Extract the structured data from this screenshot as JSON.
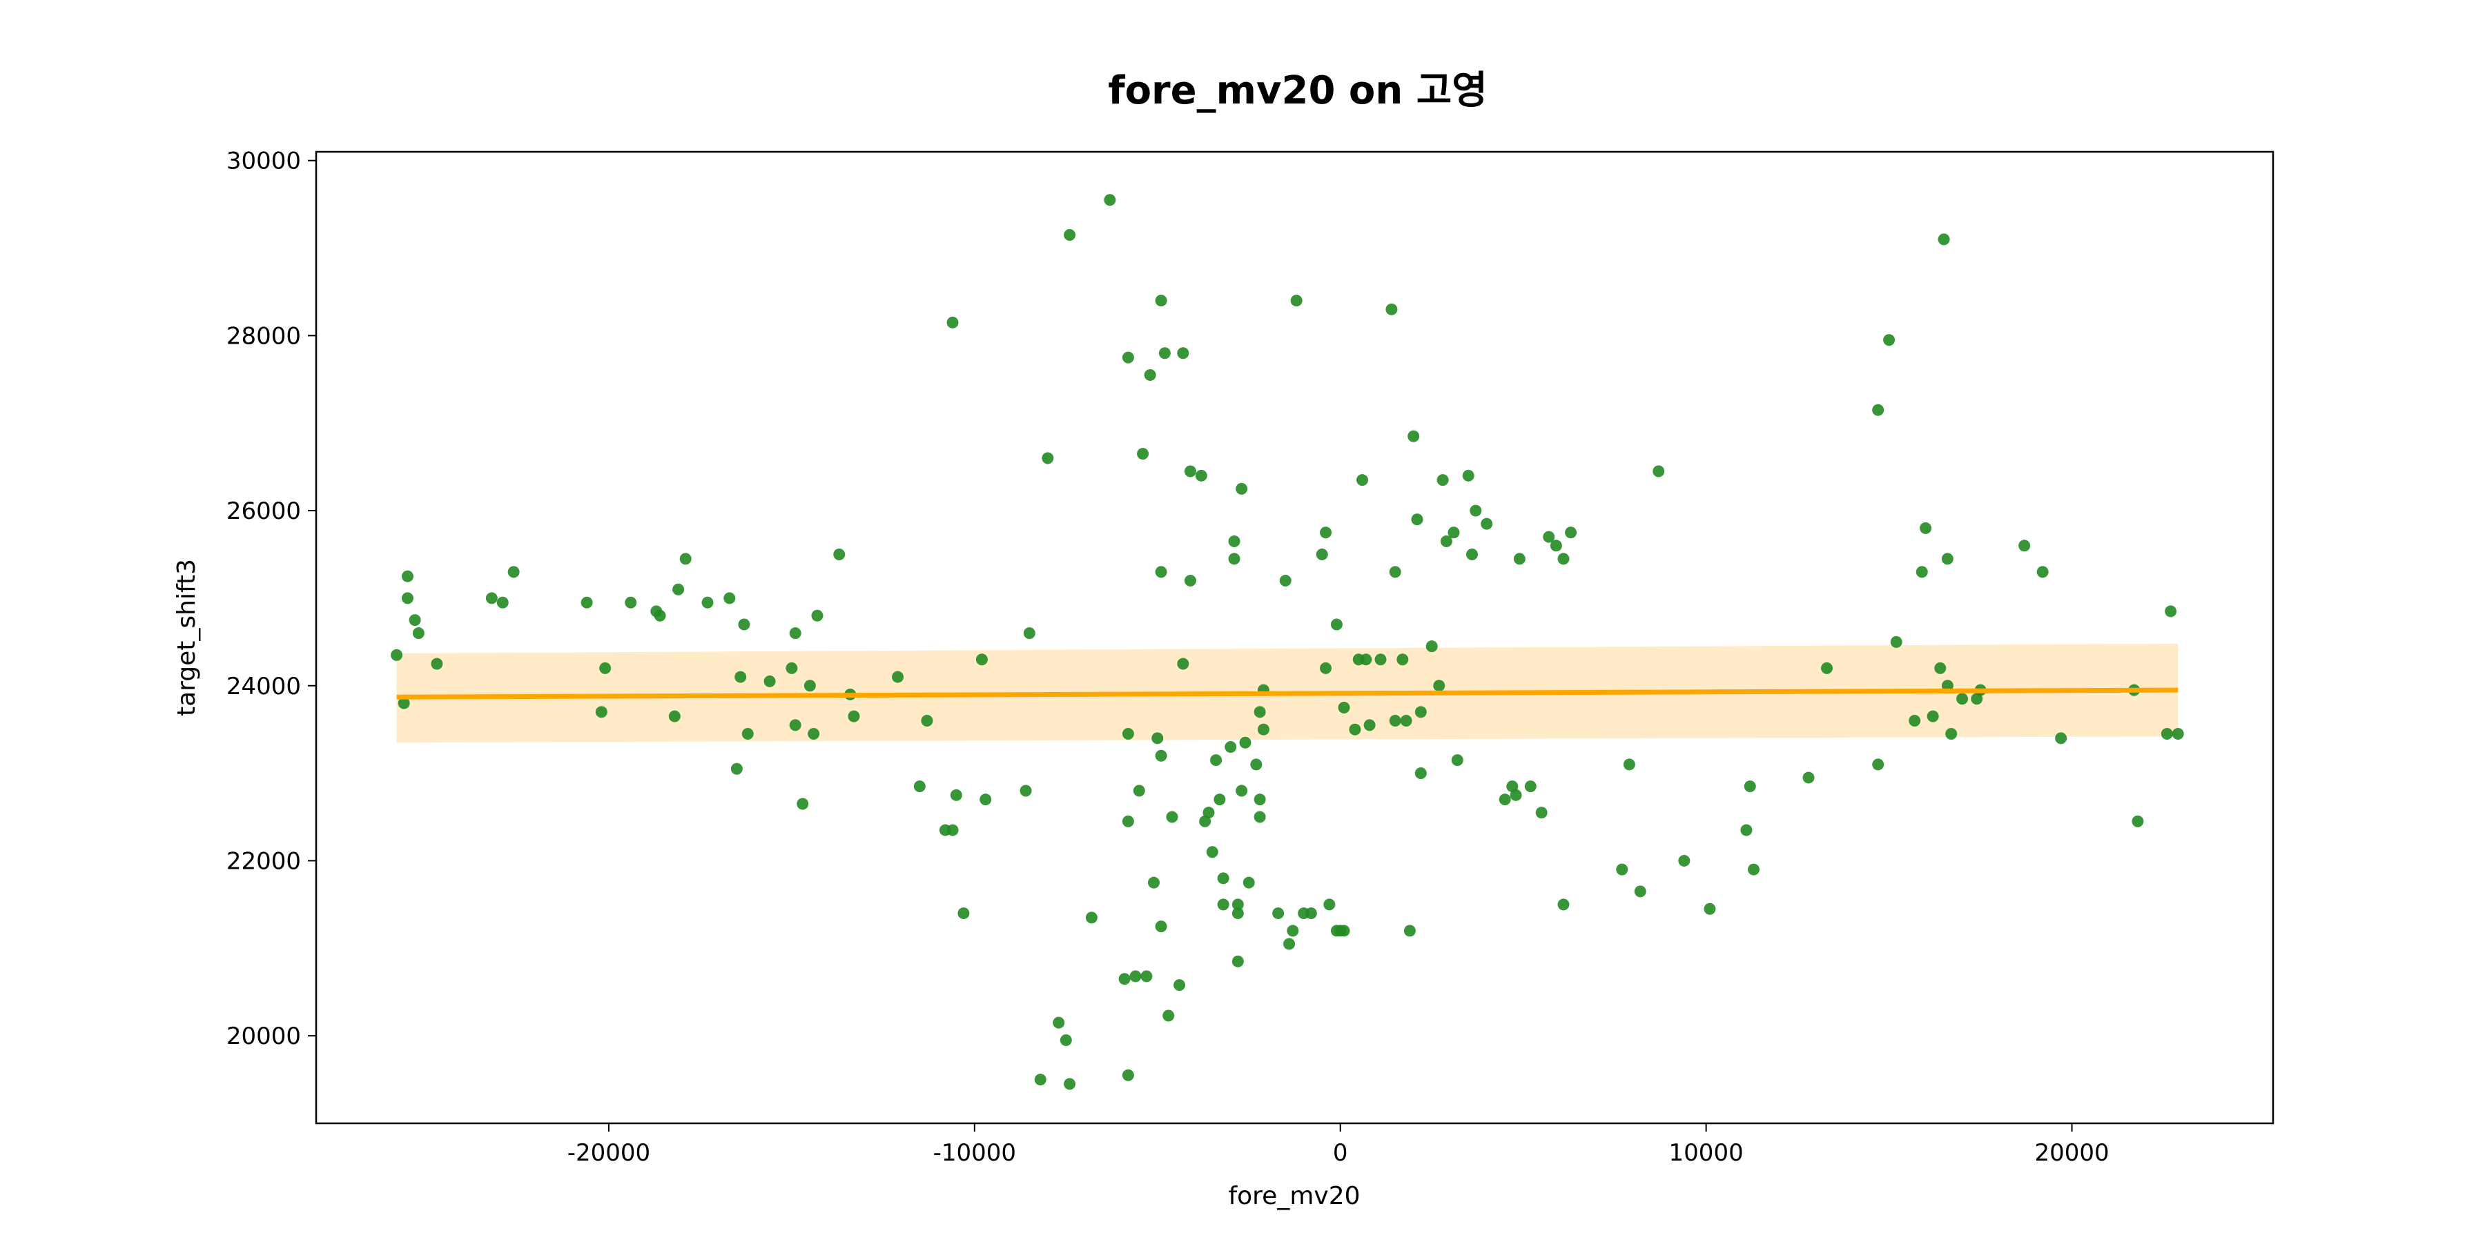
{
  "colors": {
    "points": "#228B22",
    "line": "#FFA500",
    "band": "#FFE4B5"
  },
  "chart_data": {
    "type": "scatter",
    "title": "fore_mv20 on 고영",
    "xlabel": "fore_mv20",
    "ylabel": "target_shift3",
    "xlim": [
      -28000,
      25500
    ],
    "ylim": [
      19000,
      30100
    ],
    "xticks": [
      -20000,
      -10000,
      0,
      10000,
      20000
    ],
    "yticks": [
      20000,
      22000,
      24000,
      26000,
      28000,
      30000
    ],
    "grid": false,
    "series": [
      {
        "values": [
          [
            -25800,
            24350
          ],
          [
            -25600,
            23800
          ],
          [
            -25500,
            25250
          ],
          [
            -25500,
            25000
          ],
          [
            -25300,
            24750
          ],
          [
            -25200,
            24600
          ],
          [
            -24700,
            24250
          ],
          [
            -23200,
            25000
          ],
          [
            -22900,
            24950
          ],
          [
            -22600,
            25300
          ],
          [
            -20600,
            24950
          ],
          [
            -20200,
            23700
          ],
          [
            -20100,
            24200
          ],
          [
            -19400,
            24950
          ],
          [
            -18700,
            24850
          ],
          [
            -18600,
            24800
          ],
          [
            -18200,
            23650
          ],
          [
            -18100,
            25100
          ],
          [
            -17900,
            25450
          ],
          [
            -17300,
            24950
          ],
          [
            -16700,
            25000
          ],
          [
            -16500,
            23050
          ],
          [
            -16400,
            24100
          ],
          [
            -16300,
            24700
          ],
          [
            -16200,
            23450
          ],
          [
            -15600,
            24050
          ],
          [
            -15000,
            24200
          ],
          [
            -14900,
            23550
          ],
          [
            -14900,
            24600
          ],
          [
            -14700,
            22650
          ],
          [
            -14500,
            24000
          ],
          [
            -14400,
            23450
          ],
          [
            -14300,
            24800
          ],
          [
            -13700,
            25500
          ],
          [
            -13400,
            23900
          ],
          [
            -13300,
            23650
          ],
          [
            -12100,
            24100
          ],
          [
            -11500,
            22850
          ],
          [
            -11300,
            23600
          ],
          [
            -10800,
            22350
          ],
          [
            -10600,
            22350
          ],
          [
            -10600,
            28150
          ],
          [
            -10500,
            22750
          ],
          [
            -10300,
            21400
          ],
          [
            -9800,
            24300
          ],
          [
            -9700,
            22700
          ],
          [
            -8600,
            22800
          ],
          [
            -8500,
            24600
          ],
          [
            -8200,
            19500
          ],
          [
            -8000,
            26600
          ],
          [
            -7700,
            20150
          ],
          [
            -7500,
            19950
          ],
          [
            -7400,
            19450
          ],
          [
            -7400,
            29150
          ],
          [
            -6800,
            21350
          ],
          [
            -6300,
            29550
          ],
          [
            -5900,
            20650
          ],
          [
            -5800,
            22450
          ],
          [
            -5800,
            23450
          ],
          [
            -5800,
            27750
          ],
          [
            -5800,
            19550
          ],
          [
            -5600,
            20680
          ],
          [
            -5500,
            22800
          ],
          [
            -5400,
            26650
          ],
          [
            -5300,
            20680
          ],
          [
            -5200,
            27550
          ],
          [
            -5100,
            21750
          ],
          [
            -5000,
            23400
          ],
          [
            -4900,
            23200
          ],
          [
            -4900,
            21250
          ],
          [
            -4900,
            25300
          ],
          [
            -4900,
            28400
          ],
          [
            -4800,
            27800
          ],
          [
            -4700,
            20230
          ],
          [
            -4600,
            22500
          ],
          [
            -4400,
            20580
          ],
          [
            -4300,
            24250
          ],
          [
            -4300,
            27800
          ],
          [
            -4100,
            26450
          ],
          [
            -4100,
            25200
          ],
          [
            -3800,
            26400
          ],
          [
            -3700,
            22450
          ],
          [
            -3600,
            22550
          ],
          [
            -3500,
            22100
          ],
          [
            -3400,
            23150
          ],
          [
            -3300,
            22700
          ],
          [
            -3200,
            21500
          ],
          [
            -3200,
            21800
          ],
          [
            -3000,
            23300
          ],
          [
            -2900,
            25650
          ],
          [
            -2900,
            25450
          ],
          [
            -2800,
            21500
          ],
          [
            -2800,
            20850
          ],
          [
            -2800,
            21400
          ],
          [
            -2700,
            22800
          ],
          [
            -2700,
            26250
          ],
          [
            -2600,
            23350
          ],
          [
            -2500,
            21750
          ],
          [
            -2300,
            23100
          ],
          [
            -2200,
            22700
          ],
          [
            -2200,
            22500
          ],
          [
            -2200,
            23700
          ],
          [
            -2100,
            23950
          ],
          [
            -2100,
            23500
          ],
          [
            -1700,
            21400
          ],
          [
            -1500,
            25200
          ],
          [
            -1400,
            21050
          ],
          [
            -1300,
            21200
          ],
          [
            -1200,
            28400
          ],
          [
            -1000,
            21400
          ],
          [
            -800,
            21400
          ],
          [
            -500,
            25500
          ],
          [
            -400,
            25750
          ],
          [
            -400,
            24200
          ],
          [
            -300,
            21500
          ],
          [
            -100,
            21200
          ],
          [
            0,
            21200
          ],
          [
            100,
            21200
          ],
          [
            -100,
            24700
          ],
          [
            100,
            23750
          ],
          [
            400,
            23500
          ],
          [
            500,
            24300
          ],
          [
            600,
            26350
          ],
          [
            700,
            24300
          ],
          [
            800,
            23550
          ],
          [
            1100,
            24300
          ],
          [
            1400,
            28300
          ],
          [
            1500,
            25300
          ],
          [
            1500,
            23600
          ],
          [
            1700,
            24300
          ],
          [
            1800,
            23600
          ],
          [
            1900,
            21200
          ],
          [
            2000,
            26850
          ],
          [
            2100,
            25900
          ],
          [
            2200,
            23000
          ],
          [
            2200,
            23700
          ],
          [
            2500,
            24450
          ],
          [
            2700,
            24000
          ],
          [
            2800,
            26350
          ],
          [
            2900,
            25650
          ],
          [
            3100,
            25750
          ],
          [
            3200,
            23150
          ],
          [
            3500,
            26400
          ],
          [
            3600,
            25500
          ],
          [
            3700,
            26000
          ],
          [
            4000,
            25850
          ],
          [
            4500,
            22700
          ],
          [
            4700,
            22850
          ],
          [
            4800,
            22750
          ],
          [
            4900,
            25450
          ],
          [
            5200,
            22850
          ],
          [
            5500,
            22550
          ],
          [
            5700,
            25700
          ],
          [
            5900,
            25600
          ],
          [
            6100,
            25450
          ],
          [
            6100,
            21500
          ],
          [
            6300,
            25750
          ],
          [
            7700,
            21900
          ],
          [
            7900,
            23100
          ],
          [
            8200,
            21650
          ],
          [
            8700,
            26450
          ],
          [
            9400,
            22000
          ],
          [
            10100,
            21450
          ],
          [
            11100,
            22350
          ],
          [
            11200,
            22850
          ],
          [
            11300,
            21900
          ],
          [
            12800,
            22950
          ],
          [
            13300,
            24200
          ],
          [
            14700,
            27150
          ],
          [
            14700,
            23100
          ],
          [
            15000,
            27950
          ],
          [
            15200,
            24500
          ],
          [
            15700,
            23600
          ],
          [
            15900,
            25300
          ],
          [
            16000,
            25800
          ],
          [
            16200,
            23650
          ],
          [
            16400,
            24200
          ],
          [
            16500,
            29100
          ],
          [
            16600,
            24000
          ],
          [
            16600,
            25450
          ],
          [
            16700,
            23450
          ],
          [
            17000,
            23850
          ],
          [
            17400,
            23850
          ],
          [
            17500,
            23950
          ],
          [
            18700,
            25600
          ],
          [
            19200,
            25300
          ],
          [
            19700,
            23400
          ],
          [
            21700,
            23950
          ],
          [
            21800,
            22450
          ],
          [
            22600,
            23450
          ],
          [
            22700,
            24850
          ],
          [
            22900,
            23450
          ]
        ]
      }
    ],
    "trend": {
      "x": [
        -25800,
        22900
      ],
      "y": [
        23870,
        23950
      ],
      "ci_lower": [
        23350,
        23420
      ],
      "ci_upper": [
        24370,
        24480
      ]
    }
  }
}
